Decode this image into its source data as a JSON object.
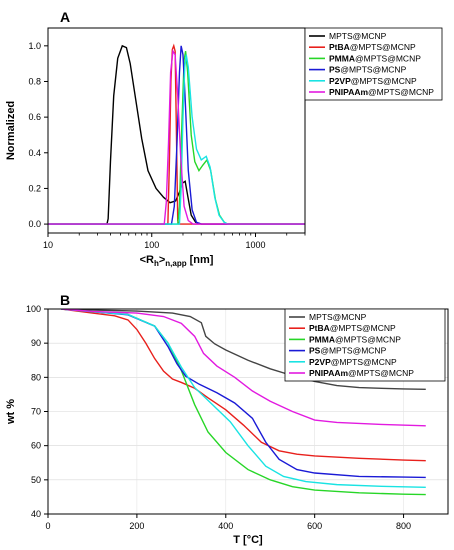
{
  "chart_data": [
    {
      "panel": "A",
      "type": "line",
      "xlabel": "<R",
      "xlabel_sub": "h",
      "xlabel_sup": "n,app",
      "xlabel_suffix": "[nm]",
      "ylabel": "Normalized",
      "xscale": "log",
      "xlim": [
        10,
        3000
      ],
      "ylim": [
        -0.05,
        1.1
      ],
      "xticks": [
        {
          "value": 10,
          "label": "10"
        },
        {
          "value": 100,
          "label": "100"
        },
        {
          "value": 1000,
          "label": "1000"
        }
      ],
      "yticks": [
        {
          "value": 0.0,
          "label": "0.0"
        },
        {
          "value": 0.2,
          "label": "0.2"
        },
        {
          "value": 0.4,
          "label": "0.4"
        },
        {
          "value": 0.6,
          "label": "0.6"
        },
        {
          "value": 0.8,
          "label": "0.8"
        },
        {
          "value": 1.0,
          "label": "1.0"
        }
      ],
      "legend_placement": "top-right",
      "series": [
        {
          "name": "MPTS@MCNP",
          "bold": "",
          "rest": "MPTS@MCNP",
          "color": "#000000",
          "points": [
            [
              10,
              0
            ],
            [
              37,
              0
            ],
            [
              38,
              0.03
            ],
            [
              40,
              0.35
            ],
            [
              43,
              0.72
            ],
            [
              47,
              0.93
            ],
            [
              52,
              1.0
            ],
            [
              57,
              0.99
            ],
            [
              62,
              0.9
            ],
            [
              70,
              0.7
            ],
            [
              80,
              0.48
            ],
            [
              92,
              0.3
            ],
            [
              110,
              0.2
            ],
            [
              130,
              0.15
            ],
            [
              150,
              0.12
            ],
            [
              170,
              0.13
            ],
            [
              185,
              0.18
            ],
            [
              198,
              0.23
            ],
            [
              210,
              0.24
            ],
            [
              222,
              0.16
            ],
            [
              240,
              0.05
            ],
            [
              265,
              0.01
            ],
            [
              300,
              0
            ],
            [
              3000,
              0
            ]
          ]
        },
        {
          "name": "PtBA@MPTS@MCNP",
          "bold": "PtBA",
          "rest": "@MPTS@MCNP",
          "color": "#e8201c",
          "points": [
            [
              10,
              0
            ],
            [
              143,
              0
            ],
            [
              148,
              0.35
            ],
            [
              153,
              0.8
            ],
            [
              158,
              0.98
            ],
            [
              163,
              1.0
            ],
            [
              168,
              0.97
            ],
            [
              173,
              0.5
            ],
            [
              178,
              0.02
            ],
            [
              182,
              0
            ],
            [
              3000,
              0
            ]
          ]
        },
        {
          "name": "PMMA@MPTS@MCNP",
          "bold": "PMMA",
          "rest": "@MPTS@MCNP",
          "color": "#27d627",
          "points": [
            [
              10,
              0
            ],
            [
              178,
              0
            ],
            [
              185,
              0.1
            ],
            [
              195,
              0.55
            ],
            [
              205,
              0.92
            ],
            [
              212,
              0.97
            ],
            [
              222,
              0.85
            ],
            [
              240,
              0.5
            ],
            [
              260,
              0.35
            ],
            [
              285,
              0.3
            ],
            [
              310,
              0.33
            ],
            [
              340,
              0.36
            ],
            [
              370,
              0.3
            ],
            [
              410,
              0.14
            ],
            [
              450,
              0.05
            ],
            [
              500,
              0.01
            ],
            [
              540,
              0
            ],
            [
              3000,
              0
            ]
          ]
        },
        {
          "name": "PS@MPTS@MCNP",
          "bold": "PS",
          "rest": "@MPTS@MCNP",
          "color": "#1a1ad6",
          "points": [
            [
              10,
              0
            ],
            [
              155,
              0
            ],
            [
              165,
              0.1
            ],
            [
              175,
              0.45
            ],
            [
              185,
              0.85
            ],
            [
              192,
              1.0
            ],
            [
              200,
              0.95
            ],
            [
              210,
              0.7
            ],
            [
              225,
              0.3
            ],
            [
              245,
              0.08
            ],
            [
              270,
              0.01
            ],
            [
              300,
              0
            ],
            [
              3000,
              0
            ]
          ]
        },
        {
          "name": "P2VP@MPTS@MCNP",
          "bold": "P2VP",
          "rest": "@MPTS@MCNP",
          "color": "#19e3e3",
          "points": [
            [
              10,
              0
            ],
            [
              185,
              0
            ],
            [
              192,
              0.2
            ],
            [
              200,
              0.6
            ],
            [
              208,
              0.88
            ],
            [
              215,
              0.95
            ],
            [
              225,
              0.88
            ],
            [
              245,
              0.6
            ],
            [
              270,
              0.42
            ],
            [
              300,
              0.36
            ],
            [
              335,
              0.38
            ],
            [
              365,
              0.32
            ],
            [
              405,
              0.15
            ],
            [
              445,
              0.05
            ],
            [
              500,
              0.01
            ],
            [
              540,
              0
            ],
            [
              3000,
              0
            ]
          ]
        },
        {
          "name": "PNIPAAm@MPTS@MCNP",
          "bold": "PNIPAAm",
          "rest": "@MPTS@MCNP",
          "color": "#e21ae0",
          "points": [
            [
              10,
              0
            ],
            [
              132,
              0
            ],
            [
              138,
              0.12
            ],
            [
              145,
              0.45
            ],
            [
              152,
              0.85
            ],
            [
              160,
              0.97
            ],
            [
              168,
              0.95
            ],
            [
              178,
              0.72
            ],
            [
              190,
              0.38
            ],
            [
              205,
              0.1
            ],
            [
              225,
              0.02
            ],
            [
              250,
              0
            ],
            [
              3000,
              0
            ]
          ]
        }
      ]
    },
    {
      "panel": "B",
      "type": "line",
      "xlabel": "T [°C]",
      "ylabel": "wt %",
      "xlim": [
        0,
        900
      ],
      "ylim": [
        40,
        100
      ],
      "xticks": [
        {
          "value": 0,
          "label": "0"
        },
        {
          "value": 200,
          "label": "200"
        },
        {
          "value": 400,
          "label": "400"
        },
        {
          "value": 600,
          "label": "600"
        },
        {
          "value": 800,
          "label": "800"
        }
      ],
      "yticks": [
        {
          "value": 40,
          "label": "40"
        },
        {
          "value": 50,
          "label": "50"
        },
        {
          "value": 60,
          "label": "60"
        },
        {
          "value": 70,
          "label": "70"
        },
        {
          "value": 80,
          "label": "80"
        },
        {
          "value": 90,
          "label": "90"
        },
        {
          "value": 100,
          "label": "100"
        }
      ],
      "legend_placement": "top-right",
      "series": [
        {
          "name": "MPTS@MCNP",
          "bold": "",
          "rest": "MPTS@MCNP",
          "color": "#444444",
          "points": [
            [
              30,
              100
            ],
            [
              100,
              99.7
            ],
            [
              200,
              99.4
            ],
            [
              280,
              98.8
            ],
            [
              320,
              97.8
            ],
            [
              345,
              96
            ],
            [
              355,
              92
            ],
            [
              375,
              89.8
            ],
            [
              400,
              88
            ],
            [
              450,
              85
            ],
            [
              500,
              82.5
            ],
            [
              550,
              80.5
            ],
            [
              600,
              78.8
            ],
            [
              650,
              77.6
            ],
            [
              700,
              77
            ],
            [
              750,
              76.8
            ],
            [
              800,
              76.6
            ],
            [
              850,
              76.5
            ]
          ]
        },
        {
          "name": "PtBA@MPTS@MCNP",
          "bold": "PtBA",
          "rest": "@MPTS@MCNP",
          "color": "#e8201c",
          "points": [
            [
              30,
              100
            ],
            [
              100,
              98.8
            ],
            [
              150,
              98
            ],
            [
              180,
              96.8
            ],
            [
              200,
              94
            ],
            [
              220,
              90
            ],
            [
              240,
              85.5
            ],
            [
              260,
              81.8
            ],
            [
              280,
              79.5
            ],
            [
              300,
              78.5
            ],
            [
              330,
              76.8
            ],
            [
              360,
              74
            ],
            [
              400,
              70.5
            ],
            [
              440,
              66
            ],
            [
              480,
              61
            ],
            [
              520,
              58.5
            ],
            [
              560,
              57.5
            ],
            [
              600,
              57
            ],
            [
              700,
              56.3
            ],
            [
              800,
              55.8
            ],
            [
              850,
              55.6
            ]
          ]
        },
        {
          "name": "PMMA@MPTS@MCNP",
          "bold": "PMMA",
          "rest": "@MPTS@MCNP",
          "color": "#27d627",
          "points": [
            [
              30,
              100
            ],
            [
              100,
              99.2
            ],
            [
              180,
              98.4
            ],
            [
              240,
              95
            ],
            [
              270,
              90
            ],
            [
              300,
              82
            ],
            [
              330,
              72
            ],
            [
              360,
              64
            ],
            [
              400,
              58
            ],
            [
              450,
              53
            ],
            [
              500,
              50
            ],
            [
              550,
              48
            ],
            [
              600,
              47
            ],
            [
              700,
              46.2
            ],
            [
              800,
              45.8
            ],
            [
              850,
              45.7
            ]
          ]
        },
        {
          "name": "PS@MPTS@MCNP",
          "bold": "PS",
          "rest": "@MPTS@MCNP",
          "color": "#1a1ad6",
          "points": [
            [
              30,
              100
            ],
            [
              100,
              99.2
            ],
            [
              180,
              98.3
            ],
            [
              240,
              95
            ],
            [
              270,
              89
            ],
            [
              290,
              84
            ],
            [
              310,
              80.3
            ],
            [
              340,
              78
            ],
            [
              380,
              75.5
            ],
            [
              420,
              72.5
            ],
            [
              460,
              68
            ],
            [
              490,
              61
            ],
            [
              520,
              56
            ],
            [
              560,
              53
            ],
            [
              600,
              52
            ],
            [
              700,
              51
            ],
            [
              800,
              50.8
            ],
            [
              850,
              50.7
            ]
          ]
        },
        {
          "name": "P2VP@MPTS@MCNP",
          "bold": "P2VP",
          "rest": "@MPTS@MCNP",
          "color": "#19e3e3",
          "points": [
            [
              30,
              100
            ],
            [
              100,
              99.2
            ],
            [
              180,
              98.4
            ],
            [
              240,
              95
            ],
            [
              270,
              90
            ],
            [
              300,
              83
            ],
            [
              330,
              77
            ],
            [
              370,
              72
            ],
            [
              410,
              67
            ],
            [
              450,
              60
            ],
            [
              490,
              54
            ],
            [
              530,
              51
            ],
            [
              580,
              49.5
            ],
            [
              650,
              48.6
            ],
            [
              750,
              48.1
            ],
            [
              850,
              47.8
            ]
          ]
        },
        {
          "name": "PNIPAAm@MPTS@MCNP",
          "bold": "PNIPAAm",
          "rest": "@MPTS@MCNP",
          "color": "#e21ae0",
          "points": [
            [
              30,
              100
            ],
            [
              100,
              99.3
            ],
            [
              200,
              98.8
            ],
            [
              260,
              97.8
            ],
            [
              300,
              95.8
            ],
            [
              330,
              92
            ],
            [
              350,
              87
            ],
            [
              380,
              83.3
            ],
            [
              420,
              80
            ],
            [
              460,
              76
            ],
            [
              500,
              73
            ],
            [
              550,
              70
            ],
            [
              600,
              67.5
            ],
            [
              650,
              66.8
            ],
            [
              750,
              66.2
            ],
            [
              850,
              65.8
            ]
          ]
        }
      ]
    }
  ]
}
